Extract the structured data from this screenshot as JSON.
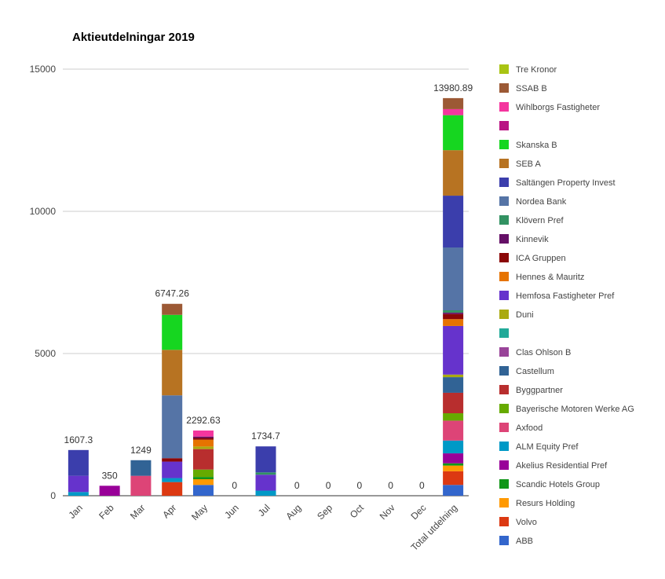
{
  "chart_data": {
    "type": "bar",
    "stacked": true,
    "title": "Aktieutdelningar 2019",
    "xlabel": "",
    "ylabel": "",
    "ylim": [
      0,
      15000
    ],
    "yticks": [
      0,
      5000,
      10000,
      15000
    ],
    "grid": true,
    "legend_position": "right",
    "categories": [
      "Jan",
      "Feb",
      "Mar",
      "Apr",
      "May",
      "Jun",
      "Jul",
      "Aug",
      "Sep",
      "Oct",
      "Nov",
      "Dec",
      "Total utdelning"
    ],
    "totals": [
      "1607.3",
      "350",
      "1249",
      "6747.26",
      "2292.63",
      "0",
      "1734.7",
      "0",
      "0",
      "0",
      "0",
      "0",
      "13980.89"
    ],
    "series": [
      {
        "name": "ABB",
        "color": "#3366cc",
        "values": [
          0,
          0,
          0,
          0,
          380,
          0,
          0,
          0,
          0,
          0,
          0,
          0,
          380
        ]
      },
      {
        "name": "Volvo",
        "color": "#dc3912",
        "values": [
          0,
          0,
          0,
          480,
          0,
          0,
          0,
          0,
          0,
          0,
          0,
          0,
          480
        ]
      },
      {
        "name": "Resurs Holding",
        "color": "#ff9900",
        "values": [
          0,
          0,
          0,
          0,
          200,
          0,
          0,
          0,
          0,
          0,
          0,
          0,
          200
        ]
      },
      {
        "name": "Scandic Hotels Group",
        "color": "#109618",
        "values": [
          0,
          0,
          0,
          0,
          80,
          0,
          0,
          0,
          0,
          0,
          0,
          0,
          80
        ]
      },
      {
        "name": "Akelius Residential Pref",
        "color": "#990099",
        "values": [
          0,
          350,
          0,
          0,
          0,
          0,
          0,
          0,
          0,
          0,
          0,
          0,
          350
        ]
      },
      {
        "name": "ALM Equity Pref",
        "color": "#0099c6",
        "values": [
          130,
          0,
          0,
          140,
          0,
          0,
          180,
          0,
          0,
          0,
          0,
          0,
          450
        ]
      },
      {
        "name": "Axfood",
        "color": "#dd4477",
        "values": [
          0,
          0,
          700,
          0,
          0,
          0,
          0,
          0,
          0,
          0,
          0,
          0,
          700
        ]
      },
      {
        "name": "Bayerische Motoren Werke AG",
        "color": "#66aa00",
        "values": [
          0,
          0,
          0,
          0,
          260,
          0,
          0,
          0,
          0,
          0,
          0,
          0,
          260
        ]
      },
      {
        "name": "Byggpartner",
        "color": "#b82e2e",
        "values": [
          0,
          0,
          0,
          0,
          720,
          0,
          0,
          0,
          0,
          0,
          0,
          0,
          720
        ]
      },
      {
        "name": "Castellum",
        "color": "#316395",
        "values": [
          0,
          0,
          549,
          0,
          0,
          0,
          0,
          0,
          0,
          0,
          0,
          0,
          549
        ]
      },
      {
        "name": "Clas Ohlson B",
        "color": "#994499",
        "values": [
          0,
          0,
          0,
          0,
          0,
          0,
          0,
          0,
          0,
          0,
          0,
          0,
          0
        ]
      },
      {
        "name": "",
        "color": "#22aa99",
        "values": [
          0,
          0,
          0,
          0,
          0,
          0,
          0,
          0,
          0,
          0,
          0,
          0,
          0
        ]
      },
      {
        "name": "Duni",
        "color": "#aaaa11",
        "values": [
          0,
          0,
          0,
          0,
          90,
          0,
          0,
          0,
          0,
          0,
          0,
          0,
          90
        ]
      },
      {
        "name": "Hemfosa Fastigheter Pref",
        "color": "#6633cc",
        "values": [
          570,
          0,
          0,
          580,
          0,
          0,
          560,
          0,
          0,
          0,
          0,
          0,
          1710
        ]
      },
      {
        "name": "Hennes & Mauritz",
        "color": "#e67300",
        "values": [
          0,
          0,
          0,
          0,
          240,
          0,
          0,
          0,
          0,
          0,
          0,
          0,
          240
        ]
      },
      {
        "name": "ICA Gruppen",
        "color": "#8b0707",
        "values": [
          0,
          0,
          0,
          120,
          60,
          0,
          0,
          0,
          0,
          0,
          0,
          0,
          180
        ]
      },
      {
        "name": "Kinnevik",
        "color": "#651067",
        "values": [
          0,
          0,
          0,
          0,
          50,
          0,
          0,
          0,
          0,
          0,
          0,
          0,
          50
        ]
      },
      {
        "name": "Klövern Pref",
        "color": "#329262",
        "values": [
          0,
          0,
          0,
          0,
          0,
          0,
          80,
          0,
          0,
          0,
          0,
          0,
          80
        ]
      },
      {
        "name": "Nordea Bank",
        "color": "#5574a6",
        "values": [
          0,
          0,
          0,
          2210,
          0,
          0,
          0,
          0,
          0,
          0,
          0,
          0,
          2210
        ]
      },
      {
        "name": "Saltängen Property Invest",
        "color": "#3b3eac",
        "values": [
          907.3,
          0,
          0,
          0,
          0,
          0,
          914.7,
          0,
          0,
          0,
          0,
          0,
          1822
        ]
      },
      {
        "name": "SEB A",
        "color": "#b77322",
        "values": [
          0,
          0,
          0,
          1600,
          0,
          0,
          0,
          0,
          0,
          0,
          0,
          0,
          1600
        ]
      },
      {
        "name": "Skanska B",
        "color": "#16d620",
        "values": [
          0,
          0,
          0,
          1230,
          0,
          0,
          0,
          0,
          0,
          0,
          0,
          0,
          1230
        ]
      },
      {
        "name": "",
        "color": "#b91383",
        "values": [
          0,
          0,
          0,
          0,
          0,
          0,
          0,
          0,
          0,
          0,
          0,
          0,
          0
        ]
      },
      {
        "name": "Wihlborgs Fastigheter",
        "color": "#f4359e",
        "values": [
          0,
          0,
          0,
          0,
          212.63,
          0,
          0,
          0,
          0,
          0,
          0,
          0,
          212.63
        ]
      },
      {
        "name": "SSAB B",
        "color": "#9c5935",
        "values": [
          0,
          0,
          0,
          387.26,
          0,
          0,
          0,
          0,
          0,
          0,
          0,
          0,
          387.26
        ]
      },
      {
        "name": "Tre Kronor",
        "color": "#a9c413",
        "values": [
          0,
          0,
          0,
          0,
          0,
          0,
          0,
          0,
          0,
          0,
          0,
          0,
          0
        ]
      }
    ]
  }
}
